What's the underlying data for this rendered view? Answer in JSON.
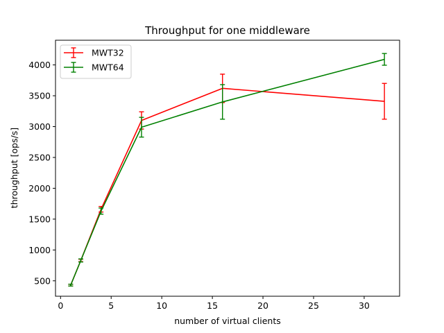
{
  "chart_data": {
    "type": "line",
    "title": "Throughput for one middleware",
    "xlabel": "number of virtual clients",
    "ylabel": "throughput [ops/s]",
    "xlim": [
      -0.5,
      33.5
    ],
    "ylim": [
      250,
      4400
    ],
    "xticks": [
      0,
      5,
      10,
      15,
      20,
      25,
      30
    ],
    "yticks": [
      500,
      1000,
      1500,
      2000,
      2500,
      3000,
      3500,
      4000
    ],
    "grid": false,
    "legend_position": "top-left",
    "series": [
      {
        "name": "MWT32",
        "color": "#ff0000",
        "points": [
          {
            "x": 1,
            "y": 430,
            "err": 15
          },
          {
            "x": 2,
            "y": 830,
            "err": 20
          },
          {
            "x": 4,
            "y": 1660,
            "err": 45
          },
          {
            "x": 8,
            "y": 3100,
            "err": 140
          },
          {
            "x": 16,
            "y": 3620,
            "err": 230
          },
          {
            "x": 32,
            "y": 3410,
            "err": 290
          }
        ]
      },
      {
        "name": "MWT64",
        "color": "#008000",
        "points": [
          {
            "x": 1,
            "y": 430,
            "err": 15
          },
          {
            "x": 2,
            "y": 830,
            "err": 25
          },
          {
            "x": 4,
            "y": 1630,
            "err": 50
          },
          {
            "x": 8,
            "y": 2990,
            "err": 160
          },
          {
            "x": 16,
            "y": 3400,
            "err": 280
          },
          {
            "x": 32,
            "y": 4090,
            "err": 95
          }
        ]
      }
    ]
  }
}
